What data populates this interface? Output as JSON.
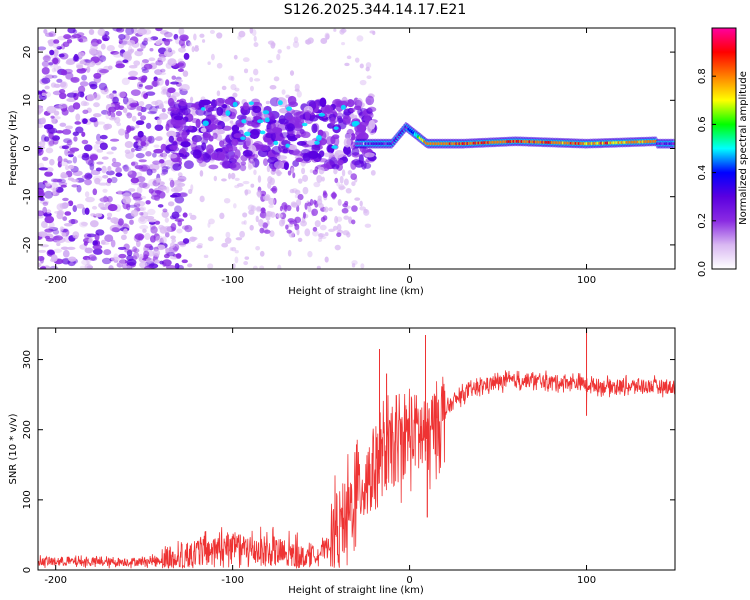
{
  "figure_title": "S126.2025.344.14.17.E21",
  "chart_data": [
    {
      "type": "heatmap",
      "title": "S126.2025.344.14.17.E21",
      "xlabel": "Height of straight line (km)",
      "ylabel": "Frequency (Hz)",
      "xlim": [
        -210,
        150
      ],
      "ylim": [
        -25,
        25
      ],
      "x_ticks": [
        -200,
        -100,
        0,
        100
      ],
      "y_ticks": [
        -20,
        -10,
        0,
        10,
        20
      ],
      "colorbar": {
        "label": "Normalized spectral amplitude",
        "range": [
          0,
          1
        ],
        "ticks": [
          0.0,
          0.2,
          0.4,
          0.6,
          0.8
        ],
        "colors": [
          "#ffffff",
          "#d9b8f2",
          "#8a2be2",
          "#5a00e0",
          "#0000ff",
          "#00ffff",
          "#00ff00",
          "#ffff00",
          "#ff8000",
          "#ff0000",
          "#ff00a0"
        ]
      },
      "frequency_ridge": [
        {
          "x": -25,
          "freq": 1.0,
          "amp": 0.25
        },
        {
          "x": -10,
          "freq": 1.0,
          "amp": 0.35
        },
        {
          "x": -2,
          "freq": 4.5,
          "amp": 0.3
        },
        {
          "x": 10,
          "freq": 1.0,
          "amp": 0.85
        },
        {
          "x": 30,
          "freq": 1.0,
          "amp": 0.9
        },
        {
          "x": 60,
          "freq": 1.5,
          "amp": 0.9
        },
        {
          "x": 100,
          "freq": 1.0,
          "amp": 0.85
        },
        {
          "x": 140,
          "freq": 1.5,
          "amp": 0.8
        }
      ]
    },
    {
      "type": "line",
      "xlabel": "Height of straight line (km)",
      "ylabel": "SNR (10 * v/v)",
      "xlim": [
        -210,
        150
      ],
      "ylim": [
        0,
        345
      ],
      "x_ticks": [
        -200,
        -100,
        0,
        100
      ],
      "y_ticks": [
        0,
        100,
        200,
        300
      ],
      "series": [
        {
          "name": "SNR",
          "color": "#ee3333",
          "x": [
            -210,
            -190,
            -170,
            -150,
            -140,
            -130,
            -120,
            -110,
            -100,
            -90,
            -80,
            -70,
            -60,
            -50,
            -45,
            -40,
            -35,
            -30,
            -25,
            -20,
            -15,
            -10,
            -5,
            0,
            5,
            10,
            15,
            20,
            25,
            30,
            40,
            50,
            60,
            70,
            80,
            90,
            100,
            110,
            120,
            130,
            140,
            150
          ],
          "values": [
            12,
            12,
            11,
            12,
            14,
            18,
            25,
            30,
            30,
            28,
            28,
            22,
            18,
            25,
            40,
            60,
            80,
            110,
            130,
            150,
            160,
            170,
            180,
            195,
            200,
            185,
            215,
            225,
            240,
            250,
            262,
            268,
            270,
            270,
            268,
            268,
            265,
            262,
            262,
            262,
            262,
            260
          ],
          "spikes": [
            {
              "x": -17,
              "value": 315
            },
            {
              "x": -13,
              "value": 280
            },
            {
              "x": 9,
              "value": 335
            },
            {
              "x": 10,
              "value": 75
            },
            {
              "x": 100,
              "value": 345
            },
            {
              "x": 100,
              "value": 220
            }
          ]
        }
      ]
    }
  ]
}
